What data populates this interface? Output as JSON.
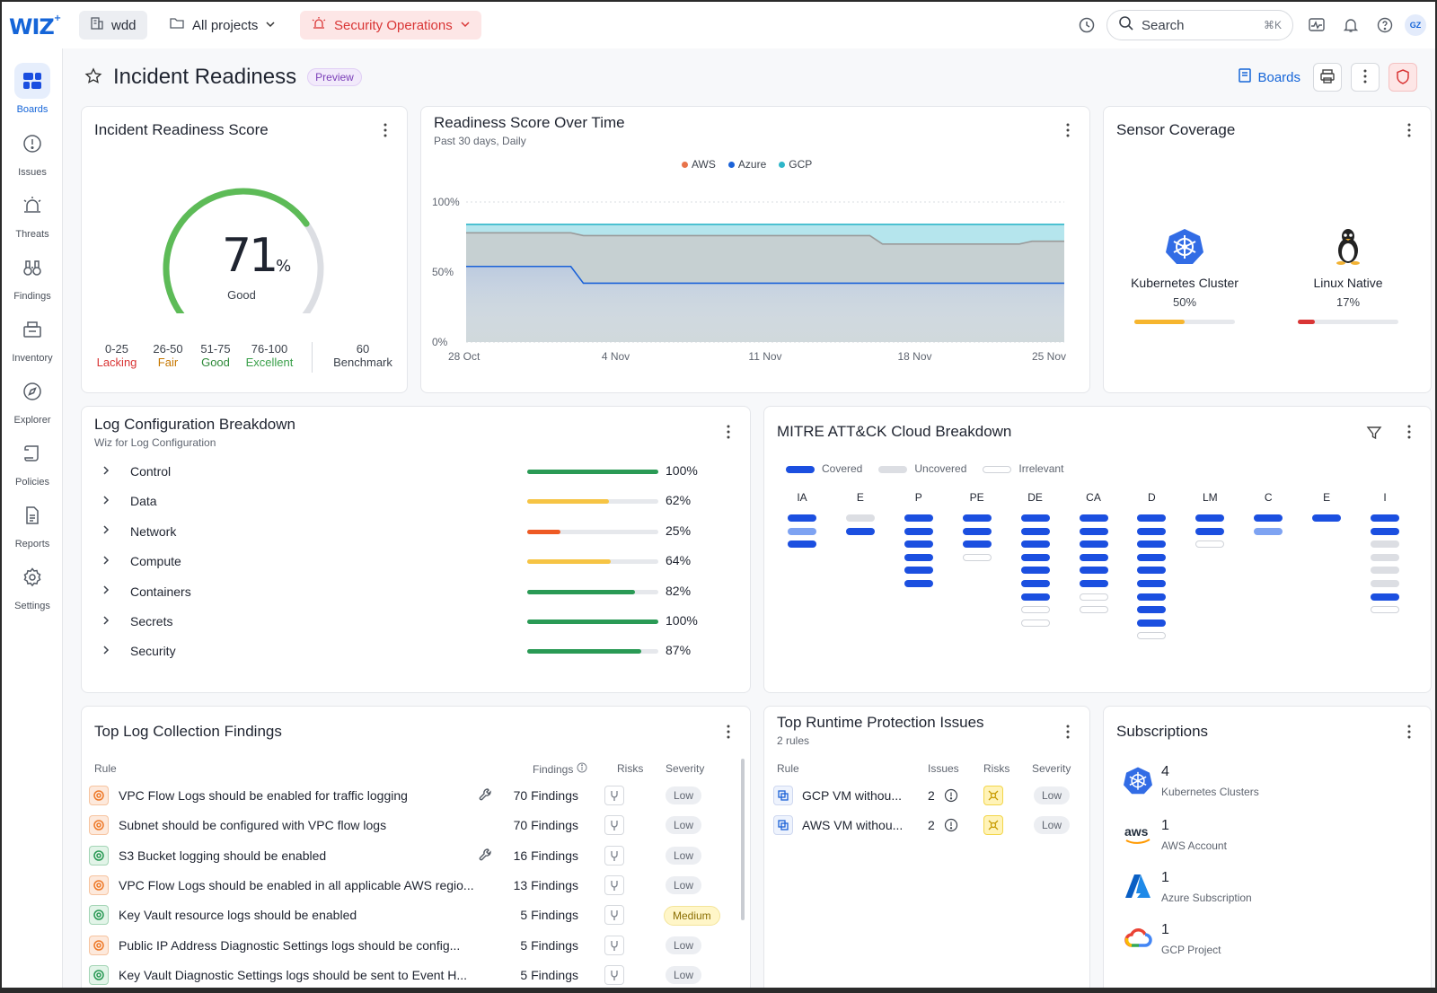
{
  "topbar": {
    "logo": "WIZ",
    "org": "wdd",
    "project": "All projects",
    "board": "Security Operations",
    "search_placeholder": "Search",
    "search_kbd": "⌘K",
    "avatar": "GZ"
  },
  "sidebar": {
    "items": [
      {
        "label": "Boards"
      },
      {
        "label": "Issues"
      },
      {
        "label": "Threats"
      },
      {
        "label": "Findings"
      },
      {
        "label": "Inventory"
      },
      {
        "label": "Explorer"
      },
      {
        "label": "Policies"
      },
      {
        "label": "Reports"
      },
      {
        "label": "Settings"
      }
    ]
  },
  "header": {
    "title": "Incident Readiness",
    "badge": "Preview",
    "boards_link": "Boards"
  },
  "score_card": {
    "title": "Incident Readiness Score",
    "value": "71",
    "unit": "%",
    "rating": "Good",
    "value_fraction": 0.71,
    "benchmark_fraction": 0.6,
    "ranges": [
      {
        "range": "0-25",
        "label": "Lacking",
        "color": "#d93535"
      },
      {
        "range": "26-50",
        "label": "Fair",
        "color": "#c77700"
      },
      {
        "range": "51-75",
        "label": "Good",
        "color": "#2f8a3a"
      },
      {
        "range": "76-100",
        "label": "Excellent",
        "color": "#3aa04a"
      }
    ],
    "benchmark_value": "60",
    "benchmark_label": "Benchmark"
  },
  "chart_card": {
    "title": "Readiness Score Over Time",
    "subtitle": "Past 30 days, Daily",
    "chart_data": {
      "type": "area",
      "x": [
        "28 Oct",
        "4 Nov",
        "11 Nov",
        "18 Nov",
        "25 Nov"
      ],
      "ylim": [
        0,
        100
      ],
      "ytick_labels": [
        "100%",
        "50%",
        "0%"
      ],
      "grid": true,
      "legend": "top",
      "series": [
        {
          "name": "AWS",
          "color": "#e8734a",
          "values": [
            78,
            76,
            76,
            70,
            72
          ]
        },
        {
          "name": "Azure",
          "color": "#1b62d8",
          "values": [
            54,
            42,
            42,
            42,
            42
          ]
        },
        {
          "name": "GCP",
          "color": "#2eb6c9",
          "values": [
            84,
            84,
            84,
            84,
            84
          ]
        }
      ]
    }
  },
  "sensor_card": {
    "title": "Sensor Coverage",
    "items": [
      {
        "label": "Kubernetes Cluster",
        "value": "50%",
        "fraction": 0.5,
        "color": "#f6b52e",
        "icon": "kubernetes-icon"
      },
      {
        "label": "Linux Native",
        "value": "17%",
        "fraction": 0.17,
        "color": "#d93535",
        "icon": "linux-icon"
      }
    ]
  },
  "log_card": {
    "title": "Log Configuration Breakdown",
    "subtitle": "Wiz for Log Configuration",
    "rows": [
      {
        "name": "Control",
        "pct": "100%",
        "fraction": 1.0,
        "color": "#2a9a55"
      },
      {
        "name": "Data",
        "pct": "62%",
        "fraction": 0.62,
        "color": "#f6c444"
      },
      {
        "name": "Network",
        "pct": "25%",
        "fraction": 0.25,
        "color": "#ee5a24"
      },
      {
        "name": "Compute",
        "pct": "64%",
        "fraction": 0.64,
        "color": "#f6c444"
      },
      {
        "name": "Containers",
        "pct": "82%",
        "fraction": 0.82,
        "color": "#2a9a55"
      },
      {
        "name": "Secrets",
        "pct": "100%",
        "fraction": 1.0,
        "color": "#2a9a55"
      },
      {
        "name": "Security",
        "pct": "87%",
        "fraction": 0.87,
        "color": "#2a9a55"
      }
    ]
  },
  "mitre_card": {
    "title": "MITRE ATT&CK Cloud Breakdown",
    "legend": [
      "Covered",
      "Uncovered",
      "Irrelevant"
    ],
    "columns": [
      {
        "label": "IA",
        "bars": [
          "c",
          "l",
          "c"
        ]
      },
      {
        "label": "E",
        "bars": [
          "u",
          "c"
        ]
      },
      {
        "label": "P",
        "bars": [
          "c",
          "c",
          "c",
          "c",
          "c",
          "c"
        ]
      },
      {
        "label": "PE",
        "bars": [
          "c",
          "c",
          "c",
          "i"
        ]
      },
      {
        "label": "DE",
        "bars": [
          "c",
          "c",
          "c",
          "c",
          "c",
          "c",
          "c",
          "i",
          "i"
        ]
      },
      {
        "label": "CA",
        "bars": [
          "c",
          "c",
          "c",
          "c",
          "c",
          "c",
          "i",
          "i"
        ]
      },
      {
        "label": "D",
        "bars": [
          "c",
          "c",
          "c",
          "c",
          "c",
          "c",
          "c",
          "c",
          "c",
          "i"
        ]
      },
      {
        "label": "LM",
        "bars": [
          "c",
          "c",
          "i"
        ]
      },
      {
        "label": "C",
        "bars": [
          "c",
          "l"
        ]
      },
      {
        "label": "E",
        "bars": [
          "c"
        ]
      },
      {
        "label": "I",
        "bars": [
          "c",
          "c",
          "u",
          "u",
          "u",
          "u",
          "c",
          "i"
        ]
      }
    ]
  },
  "findings_card": {
    "title": "Top Log Collection Findings",
    "headers": {
      "rule": "Rule",
      "findings": "Findings",
      "risks": "Risks",
      "severity": "Severity"
    },
    "rows": [
      {
        "rule": "VPC Flow Logs should be enabled for traffic logging",
        "findings": "70 Findings",
        "severity": "Low",
        "icon_color": "#ee7a2a",
        "icon_bg": "#fde9dc",
        "wrench": true
      },
      {
        "rule": "Subnet should be configured with VPC flow logs",
        "findings": "70 Findings",
        "severity": "Low",
        "icon_color": "#ee7a2a",
        "icon_bg": "#fde9dc",
        "wrench": false
      },
      {
        "rule": "S3 Bucket logging should be enabled",
        "findings": "16 Findings",
        "severity": "Low",
        "icon_color": "#2a9a55",
        "icon_bg": "#e2f4e8",
        "wrench": true
      },
      {
        "rule": "VPC Flow Logs should be enabled in all applicable AWS regio...",
        "findings": "13 Findings",
        "severity": "Low",
        "icon_color": "#ee7a2a",
        "icon_bg": "#fde9dc",
        "wrench": false
      },
      {
        "rule": "Key Vault resource logs should be enabled",
        "findings": "5 Findings",
        "severity": "Medium",
        "icon_color": "#2a9a55",
        "icon_bg": "#e2f4e8",
        "wrench": false
      },
      {
        "rule": "Public IP Address Diagnostic Settings logs should be config...",
        "findings": "5 Findings",
        "severity": "Low",
        "icon_color": "#ee7a2a",
        "icon_bg": "#fde9dc",
        "wrench": false
      },
      {
        "rule": "Key Vault Diagnostic Settings logs should be sent to Event H...",
        "findings": "5 Findings",
        "severity": "Low",
        "icon_color": "#2a9a55",
        "icon_bg": "#e2f4e8",
        "wrench": false
      }
    ]
  },
  "runtime_card": {
    "title": "Top Runtime Protection Issues",
    "subtitle": "2 rules",
    "headers": {
      "rule": "Rule",
      "issues": "Issues",
      "risks": "Risks",
      "severity": "Severity"
    },
    "rows": [
      {
        "rule": "GCP VM withou...",
        "issues": "2",
        "severity": "Low"
      },
      {
        "rule": "AWS VM withou...",
        "issues": "2",
        "severity": "Low"
      }
    ]
  },
  "subs_card": {
    "title": "Subscriptions",
    "items": [
      {
        "count": "4",
        "label": "Kubernetes Clusters",
        "icon": "kubernetes-icon"
      },
      {
        "count": "1",
        "label": "AWS Account",
        "icon": "aws-icon",
        "logo_text": "aws"
      },
      {
        "count": "1",
        "label": "Azure Subscription",
        "icon": "azure-icon"
      },
      {
        "count": "1",
        "label": "GCP Project",
        "icon": "gcp-icon"
      }
    ]
  }
}
